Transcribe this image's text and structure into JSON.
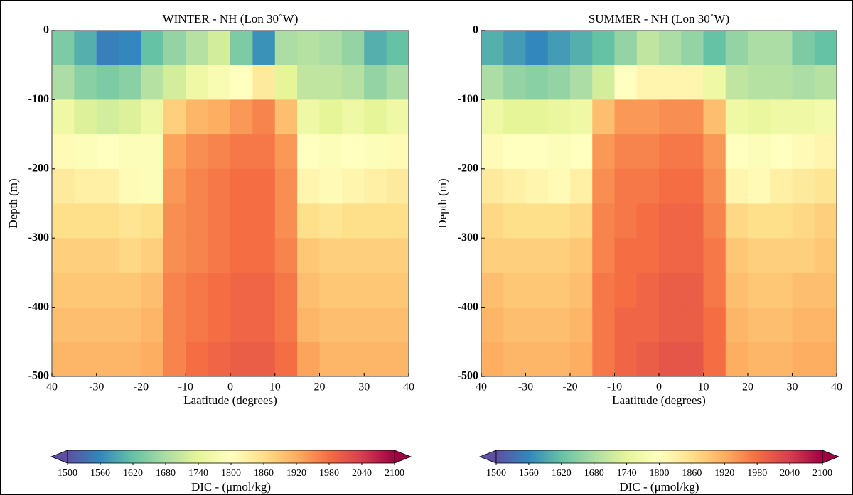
{
  "chart_data": [
    {
      "type": "heatmap",
      "title": "WINTER - NH (Lon 30˚W)",
      "xlabel": "Laatitude (degrees)",
      "ylabel": "Depth (m)",
      "x": [
        -37.5,
        -32.5,
        -27.5,
        -22.5,
        -17.5,
        -12.5,
        -7.5,
        -2.5,
        2.5,
        7.5,
        12.5,
        17.5,
        22.5,
        27.5,
        32.5,
        37.5
      ],
      "y": [
        -25,
        -75,
        -125,
        -175,
        -225,
        -275,
        -325,
        -375,
        -425,
        -475
      ],
      "values": [
        [
          1640,
          1600,
          1550,
          1560,
          1620,
          1660,
          1690,
          1720,
          1640,
          1570,
          1680,
          1690,
          1680,
          1660,
          1600,
          1620
        ],
        [
          1680,
          1650,
          1640,
          1650,
          1690,
          1720,
          1760,
          1780,
          1800,
          1840,
          1740,
          1700,
          1700,
          1690,
          1660,
          1680
        ],
        [
          1760,
          1730,
          1720,
          1730,
          1760,
          1880,
          1910,
          1920,
          1940,
          1960,
          1900,
          1760,
          1740,
          1760,
          1740,
          1760
        ],
        [
          1810,
          1790,
          1800,
          1790,
          1790,
          1930,
          1950,
          1960,
          1970,
          1970,
          1940,
          1800,
          1790,
          1800,
          1790,
          1810
        ],
        [
          1840,
          1830,
          1830,
          1810,
          1790,
          1940,
          1960,
          1970,
          1980,
          1980,
          1950,
          1820,
          1810,
          1820,
          1830,
          1840
        ],
        [
          1860,
          1860,
          1860,
          1850,
          1860,
          1950,
          1960,
          1970,
          1980,
          1980,
          1950,
          1860,
          1850,
          1860,
          1860,
          1860
        ],
        [
          1880,
          1880,
          1880,
          1870,
          1880,
          1950,
          1960,
          1970,
          1980,
          1980,
          1960,
          1890,
          1880,
          1880,
          1880,
          1880
        ],
        [
          1890,
          1890,
          1890,
          1890,
          1900,
          1960,
          1970,
          1980,
          1990,
          1990,
          1970,
          1900,
          1890,
          1890,
          1890,
          1890
        ],
        [
          1900,
          1900,
          1900,
          1900,
          1910,
          1960,
          1970,
          1980,
          1990,
          1990,
          1970,
          1910,
          1900,
          1900,
          1900,
          1900
        ],
        [
          1910,
          1910,
          1910,
          1910,
          1920,
          1960,
          1980,
          1990,
          2000,
          2000,
          1980,
          1930,
          1910,
          1910,
          1910,
          1910
        ]
      ],
      "xlim": [
        -40,
        40
      ],
      "xticks": [
        {
          "value": -40,
          "label": "40"
        },
        -30,
        -20,
        -10,
        0,
        10,
        20,
        30,
        40
      ],
      "ylim": [
        -500,
        0
      ],
      "yticks": [
        -500,
        -400,
        -300,
        -200,
        -100,
        0
      ],
      "clim": [
        1500,
        2100
      ],
      "cticks": [
        1500,
        1560,
        1620,
        1680,
        1740,
        1800,
        1860,
        1920,
        1980,
        2040,
        2100
      ],
      "colorbar_label": "DIC - (μmol/kg)",
      "colormap": [
        "#5e4fa2",
        "#3288bd",
        "#66c2a5",
        "#abdda4",
        "#e6f598",
        "#ffffbf",
        "#fee08b",
        "#fdae61",
        "#f46d43",
        "#d53e4f",
        "#9e0142"
      ]
    },
    {
      "type": "heatmap",
      "title": "SUMMER - NH (Lon 30˚W)",
      "xlabel": "Laatitude (degrees)",
      "ylabel": "Depth (m)",
      "x": [
        -37.5,
        -32.5,
        -27.5,
        -22.5,
        -17.5,
        -12.5,
        -7.5,
        -2.5,
        2.5,
        7.5,
        12.5,
        17.5,
        22.5,
        27.5,
        32.5,
        37.5
      ],
      "y": [
        -25,
        -75,
        -125,
        -175,
        -225,
        -275,
        -325,
        -375,
        -425,
        -475
      ],
      "values": [
        [
          1600,
          1580,
          1560,
          1580,
          1600,
          1620,
          1660,
          1700,
          1680,
          1660,
          1620,
          1660,
          1680,
          1680,
          1640,
          1620
        ],
        [
          1680,
          1660,
          1650,
          1660,
          1680,
          1720,
          1800,
          1820,
          1820,
          1820,
          1760,
          1700,
          1690,
          1690,
          1680,
          1690
        ],
        [
          1760,
          1740,
          1740,
          1750,
          1760,
          1900,
          1940,
          1940,
          1950,
          1950,
          1900,
          1760,
          1750,
          1760,
          1760,
          1770
        ],
        [
          1810,
          1800,
          1800,
          1790,
          1800,
          1940,
          1960,
          1960,
          1970,
          1970,
          1940,
          1800,
          1790,
          1800,
          1810,
          1820
        ],
        [
          1840,
          1830,
          1820,
          1810,
          1830,
          1950,
          1970,
          1970,
          1980,
          1980,
          1950,
          1820,
          1810,
          1830,
          1840,
          1850
        ],
        [
          1870,
          1860,
          1860,
          1860,
          1870,
          1960,
          1970,
          1980,
          1990,
          1990,
          1960,
          1870,
          1860,
          1860,
          1870,
          1880
        ],
        [
          1880,
          1880,
          1880,
          1880,
          1890,
          1960,
          1980,
          1980,
          1990,
          1990,
          1970,
          1890,
          1880,
          1880,
          1880,
          1890
        ],
        [
          1900,
          1890,
          1890,
          1890,
          1900,
          1970,
          1980,
          1990,
          2000,
          2000,
          1970,
          1900,
          1890,
          1890,
          1900,
          1900
        ],
        [
          1910,
          1900,
          1900,
          1900,
          1910,
          1970,
          1990,
          1990,
          2000,
          2000,
          1980,
          1910,
          1900,
          1900,
          1910,
          1910
        ],
        [
          1920,
          1910,
          1910,
          1910,
          1920,
          1970,
          1990,
          2000,
          2010,
          2010,
          1980,
          1920,
          1910,
          1910,
          1920,
          1920
        ]
      ],
      "xlim": [
        -40,
        40
      ],
      "xticks": [
        {
          "value": -40,
          "label": "40"
        },
        -30,
        -20,
        -10,
        0,
        10,
        20,
        30,
        40
      ],
      "ylim": [
        -500,
        0
      ],
      "yticks": [
        -500,
        -400,
        -300,
        -200,
        -100,
        0
      ],
      "clim": [
        1500,
        2100
      ],
      "cticks": [
        1500,
        1560,
        1620,
        1680,
        1740,
        1800,
        1860,
        1920,
        1980,
        2040,
        2100
      ],
      "colorbar_label": "DIC - (μmol/kg)",
      "colormap": [
        "#5e4fa2",
        "#3288bd",
        "#66c2a5",
        "#abdda4",
        "#e6f598",
        "#ffffbf",
        "#fee08b",
        "#fdae61",
        "#f46d43",
        "#d53e4f",
        "#9e0142"
      ]
    }
  ]
}
